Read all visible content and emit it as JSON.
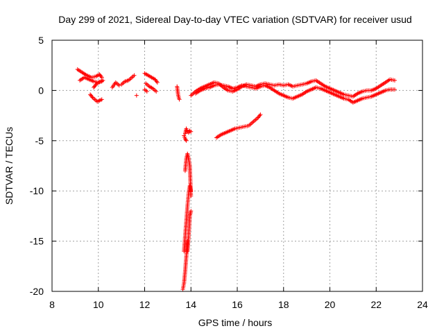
{
  "chart_data": {
    "type": "scatter",
    "title": "Day 299 of 2021, Sidereal Day-to-day VTEC variation (SDTVAR) for receiver usud",
    "xlabel": "GPS time / hours",
    "ylabel": "SDTVAR / TECUs",
    "xlim": [
      8,
      24
    ],
    "ylim": [
      -20,
      5
    ],
    "xticks": [
      8,
      10,
      12,
      14,
      16,
      18,
      20,
      22,
      24
    ],
    "yticks": [
      5,
      0,
      -5,
      -10,
      -15,
      -20
    ],
    "grid": true,
    "marker": "+",
    "marker_color": "#ff0000",
    "series": [
      {
        "name": "SDTVAR",
        "segments": [
          {
            "x": [
              9.1,
              9.3,
              9.5,
              9.7,
              9.9,
              10.05,
              10.15
            ],
            "y": [
              2.1,
              1.8,
              1.5,
              1.3,
              1.4,
              1.6,
              1.3
            ]
          },
          {
            "x": [
              9.2,
              9.4,
              9.6,
              9.8,
              10.0,
              10.15
            ],
            "y": [
              1.0,
              1.3,
              1.1,
              0.9,
              0.8,
              0.9
            ]
          },
          {
            "x": [
              9.8,
              9.9,
              10.0,
              10.1,
              10.2
            ],
            "y": [
              0.3,
              0.6,
              0.8,
              0.9,
              1.0
            ]
          },
          {
            "x": [
              9.65,
              9.75,
              9.85,
              9.95,
              10.05,
              10.15
            ],
            "y": [
              -0.4,
              -0.7,
              -0.9,
              -1.1,
              -1.0,
              -0.9
            ]
          },
          {
            "x": [
              10.6,
              10.75,
              10.9
            ],
            "y": [
              0.3,
              0.8,
              0.5
            ]
          },
          {
            "x": [
              11.0,
              11.15,
              11.3,
              11.45,
              11.55
            ],
            "y": [
              0.6,
              0.9,
              1.0,
              1.3,
              1.5
            ]
          },
          {
            "x": [
              11.65
            ],
            "y": [
              -0.5
            ]
          },
          {
            "x": [
              12.0,
              12.15,
              12.3,
              12.45,
              12.55
            ],
            "y": [
              1.7,
              1.5,
              1.3,
              1.1,
              0.8
            ]
          },
          {
            "x": [
              12.05,
              12.2,
              12.35,
              12.5
            ],
            "y": [
              0.7,
              0.4,
              0.2,
              -0.1
            ]
          },
          {
            "x": [
              12.0,
              12.1
            ],
            "y": [
              0.1,
              -0.1
            ]
          },
          {
            "x": [
              13.4,
              13.45,
              13.5
            ],
            "y": [
              0.4,
              -0.5,
              -0.9
            ]
          },
          {
            "x": [
              13.75,
              13.8,
              13.85,
              13.9,
              13.95,
              14.0
            ],
            "y": [
              -4.3,
              -3.8,
              -4.1,
              -4.2,
              -4.0,
              -4.1
            ]
          },
          {
            "x": [
              13.65,
              13.7,
              13.75,
              13.8,
              13.85
            ],
            "y": [
              -19.8,
              -19.2,
              -18.0,
              -16.5,
              -15.0
            ]
          },
          {
            "x": [
              13.7,
              13.75,
              13.8,
              13.85,
              13.9,
              13.95,
              14.0
            ],
            "y": [
              -16.0,
              -14.5,
              -13.0,
              -11.5,
              -10.2,
              -9.5,
              -10.0
            ]
          },
          {
            "x": [
              13.75,
              13.8,
              13.85,
              13.9,
              13.95,
              14.0
            ],
            "y": [
              -8.0,
              -6.8,
              -6.3,
              -6.8,
              -7.5,
              -10.5
            ]
          },
          {
            "x": [
              13.85,
              13.9,
              13.95,
              14.0
            ],
            "y": [
              -16.0,
              -14.5,
              -12.5,
              -12.0
            ]
          },
          {
            "x": [
              13.7,
              13.75,
              13.8
            ],
            "y": [
              -4.5,
              -4.8,
              -5.0
            ]
          },
          {
            "x": [
              14.0,
              14.2,
              14.4,
              14.6,
              14.8,
              15.0,
              15.2,
              15.4,
              15.6,
              15.8,
              16.0,
              16.2,
              16.4,
              16.6,
              16.8,
              17.0,
              17.2,
              17.4,
              17.6,
              17.8,
              18.0,
              18.2,
              18.4,
              18.6,
              18.8,
              19.0,
              19.2,
              19.4,
              19.6,
              19.8,
              20.0,
              20.2,
              20.4,
              20.6,
              20.8,
              21.0,
              21.2,
              21.4,
              21.6,
              21.8,
              22.0,
              22.2,
              22.4,
              22.6,
              22.8
            ],
            "y": [
              -0.5,
              -0.1,
              0.2,
              0.4,
              0.6,
              0.8,
              0.7,
              0.3,
              0.0,
              -0.1,
              0.1,
              0.4,
              0.6,
              0.5,
              0.4,
              0.6,
              0.7,
              0.6,
              0.5,
              0.6,
              0.5,
              0.6,
              0.4,
              0.5,
              0.6,
              0.7,
              0.9,
              1.0,
              0.7,
              0.4,
              0.2,
              0.0,
              -0.2,
              -0.4,
              -0.5,
              -0.6,
              -0.3,
              -0.1,
              0.0,
              0.0,
              0.2,
              0.5,
              0.8,
              1.1,
              1.0
            ]
          },
          {
            "x": [
              14.2,
              14.4,
              14.6,
              14.8,
              15.0,
              15.2,
              15.4,
              15.6,
              15.8,
              16.0,
              16.2,
              16.4,
              16.6,
              16.8,
              17.0,
              17.2,
              17.4,
              17.6,
              17.8,
              18.0,
              18.2,
              18.4,
              18.6,
              18.8,
              19.0,
              19.2,
              19.4,
              19.6,
              19.8,
              20.0,
              20.2,
              20.4,
              20.6,
              20.8,
              21.0,
              21.2,
              21.4,
              21.6,
              21.8,
              22.0,
              22.2,
              22.4,
              22.6,
              22.8
            ],
            "y": [
              -0.3,
              0.0,
              0.2,
              0.3,
              0.5,
              0.6,
              0.5,
              0.4,
              0.2,
              0.3,
              0.5,
              0.4,
              0.3,
              0.2,
              0.4,
              0.5,
              0.3,
              0.0,
              -0.3,
              -0.5,
              -0.7,
              -0.8,
              -0.6,
              -0.4,
              -0.1,
              0.1,
              0.3,
              0.2,
              0.0,
              -0.2,
              -0.4,
              -0.6,
              -0.8,
              -0.9,
              -1.2,
              -1.0,
              -0.8,
              -0.7,
              -0.6,
              -0.4,
              -0.2,
              0.0,
              0.1,
              0.1
            ]
          },
          {
            "x": [
              15.1,
              15.3,
              15.5,
              15.7,
              15.9,
              16.1,
              16.3,
              16.5,
              16.7,
              16.9,
              17.0
            ],
            "y": [
              -4.7,
              -4.4,
              -4.2,
              -4.0,
              -3.8,
              -3.7,
              -3.6,
              -3.5,
              -3.1,
              -2.7,
              -2.4
            ]
          }
        ]
      }
    ]
  }
}
